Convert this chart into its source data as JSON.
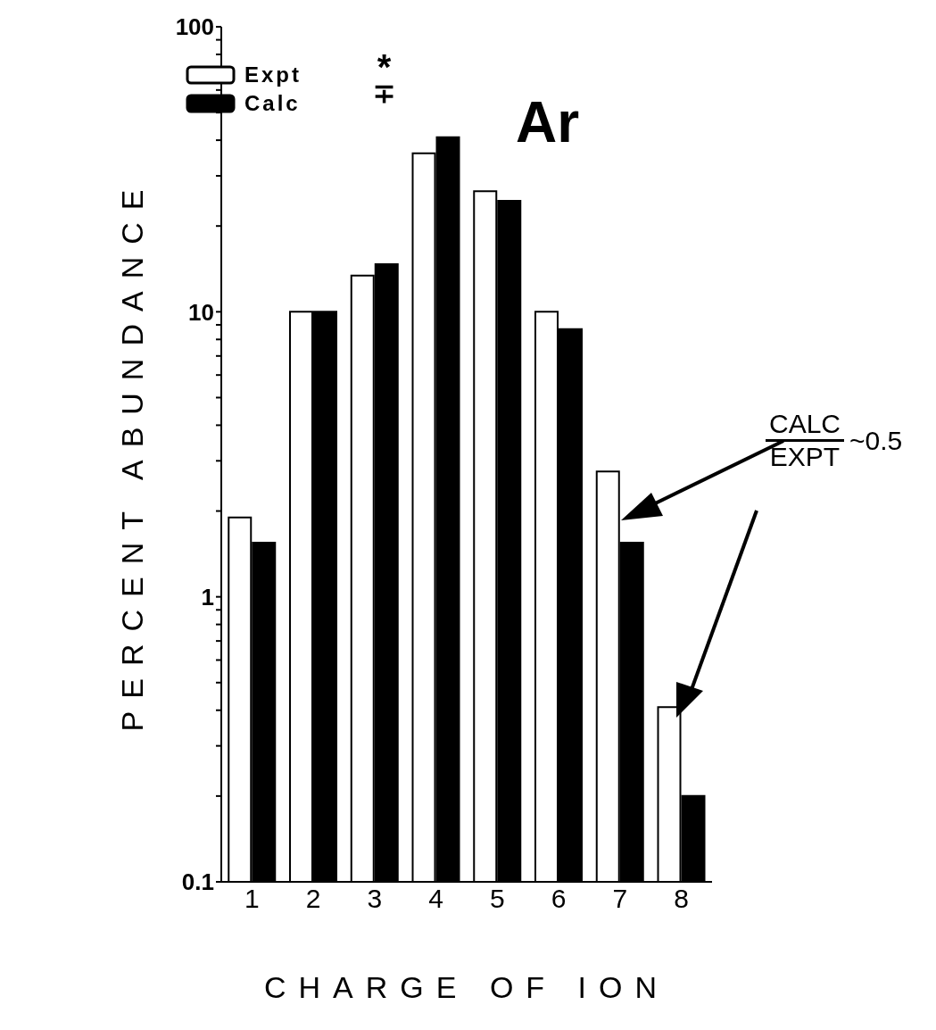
{
  "chart_data": {
    "type": "bar",
    "xlabel": "CHARGE OF ION",
    "ylabel": "PERCENT ABUNDANCE",
    "categories": [
      "1",
      "2",
      "3",
      "4",
      "5",
      "6",
      "7",
      "8"
    ],
    "series": [
      {
        "name": "Expt",
        "color": "#ffffff",
        "values": [
          1.9,
          10,
          13.4,
          36,
          26.5,
          10,
          2.75,
          0.41
        ]
      },
      {
        "name": "Calc",
        "color": "#000000",
        "values": [
          1.55,
          10,
          14.7,
          41,
          24.5,
          8.7,
          1.55,
          0.2
        ]
      }
    ],
    "log": true,
    "ylim": [
      0.1,
      100
    ],
    "yticks": [
      0.1,
      {
        "value": 0.2,
        "label": null
      },
      {
        "value": 0.3,
        "label": null
      },
      {
        "value": 0.4,
        "label": null
      },
      {
        "value": 0.5,
        "label": null
      },
      {
        "value": 0.6,
        "label": null
      },
      {
        "value": 0.7,
        "label": null
      },
      {
        "value": 0.8,
        "label": null
      },
      {
        "value": 0.9,
        "label": null
      },
      1,
      {
        "value": 2,
        "label": null
      },
      {
        "value": 3,
        "label": null
      },
      {
        "value": 4,
        "label": null
      },
      {
        "value": 5,
        "label": null
      },
      {
        "value": 6,
        "label": null
      },
      {
        "value": 7,
        "label": null
      },
      {
        "value": 8,
        "label": null
      },
      {
        "value": 9,
        "label": null
      },
      10,
      {
        "value": 20,
        "label": null
      },
      {
        "value": 30,
        "label": null
      },
      {
        "value": 40,
        "label": null
      },
      {
        "value": 50,
        "label": null
      },
      {
        "value": 60,
        "label": null
      },
      {
        "value": 70,
        "label": null
      },
      {
        "value": 80,
        "label": null
      },
      {
        "value": 90,
        "label": null
      },
      100
    ],
    "legend": "top left",
    "annotations": [
      "Ar",
      "*",
      "∓",
      "CALC",
      "EXPT",
      "~0.5"
    ]
  }
}
